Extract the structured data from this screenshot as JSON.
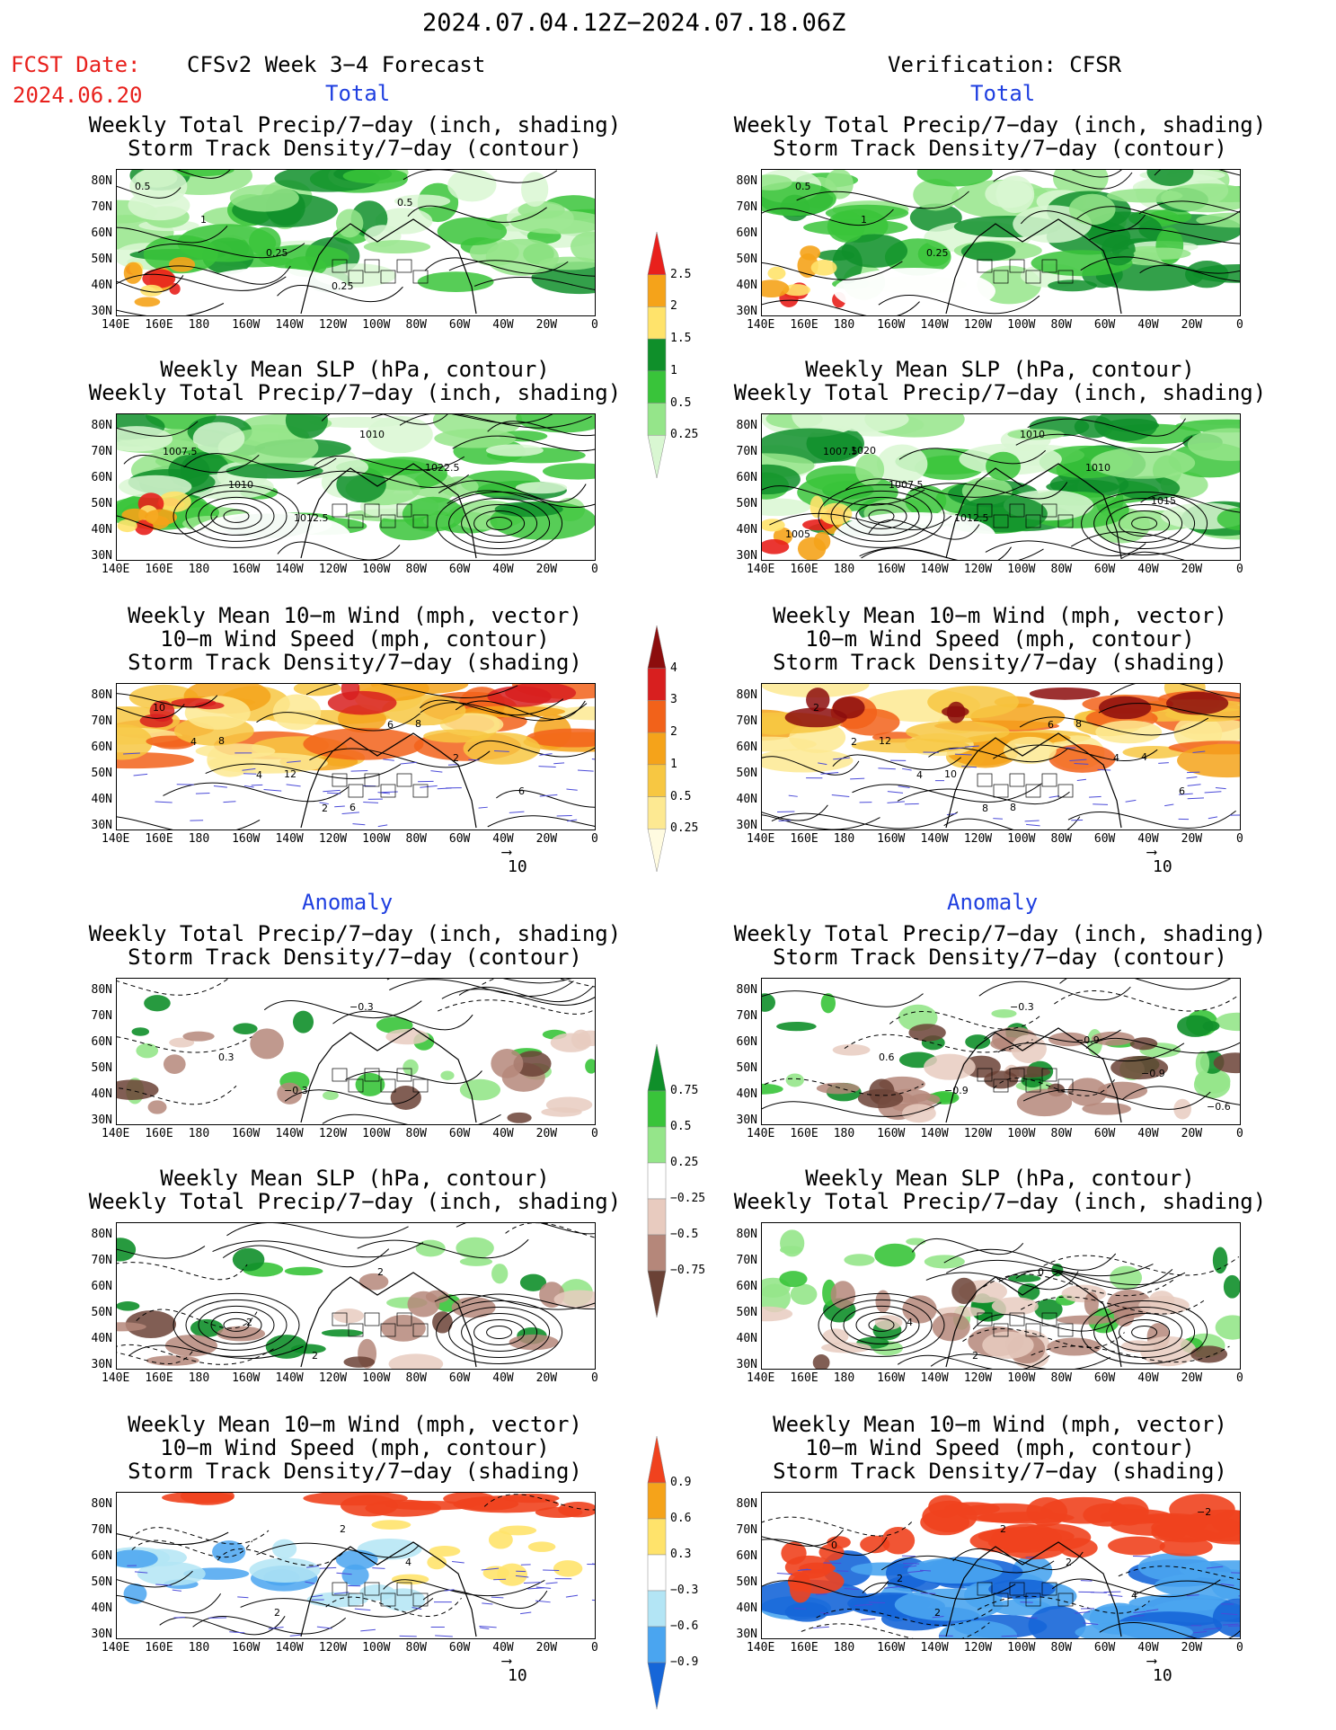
{
  "header": {
    "date_range": "2024.07.04.12Z−2024.07.18.06Z",
    "fcst_label": "FCST Date:",
    "fcst_date": "2024.06.20",
    "forecast_title": "CFSv2 Week 3−4 Forecast",
    "verification_title": "Verification: CFSR"
  },
  "sections": {
    "total": "Total",
    "anomaly": "Anomaly"
  },
  "panel_titles": {
    "precip_storm": [
      "Weekly Total Precip/7−day (inch, shading)",
      "Storm Track Density/7−day (contour)"
    ],
    "slp_precip": [
      "Weekly Mean SLP (hPa, contour)",
      "Weekly Total Precip/7−day (inch, shading)"
    ],
    "wind_storm": [
      "Weekly Mean 10−m Wind (mph, vector)",
      "10−m Wind Speed (mph, contour)",
      "Storm Track Density/7−day (shading)"
    ]
  },
  "axes": {
    "lat_labels": [
      "80N",
      "70N",
      "60N",
      "50N",
      "40N",
      "30N"
    ],
    "lon_labels": [
      "140E",
      "160E",
      "180",
      "160W",
      "140W",
      "120W",
      "100W",
      "80W",
      "60W",
      "40W",
      "20W",
      "0"
    ]
  },
  "vector_ref": "10",
  "colorbars": {
    "total_precip": {
      "labels": [
        "2.5",
        "2",
        "1.5",
        "1",
        "0.5",
        "0.25"
      ],
      "colors": [
        "#e8201c",
        "#f5a31a",
        "#ffe36b",
        "#0f8f2a",
        "#39c43a",
        "#95e58a",
        "#d9f7d2"
      ]
    },
    "total_storm": {
      "labels": [
        "4",
        "3",
        "2",
        "1",
        "0.5",
        "0.25"
      ],
      "colors": [
        "#8c0d0d",
        "#d81f1f",
        "#f2621a",
        "#f5a31a",
        "#f7c742",
        "#fde992",
        "#fffbe0"
      ]
    },
    "anom_precip": {
      "labels": [
        "0.75",
        "0.5",
        "0.25",
        "−0.25",
        "−0.5",
        "−0.75"
      ],
      "colors": [
        "#0f8f2a",
        "#39c43a",
        "#95e58a",
        "#ffffff",
        "#e8cbbf",
        "#b5877a",
        "#6b4236"
      ]
    },
    "anom_storm": {
      "labels": [
        "0.9",
        "0.6",
        "0.3",
        "−0.3",
        "−0.6",
        "−0.9"
      ],
      "colors": [
        "#f0421e",
        "#f5a31a",
        "#ffe36b",
        "#ffffff",
        "#b3e5f5",
        "#4aa5f0",
        "#1666d8"
      ]
    }
  },
  "contour_labels": {
    "left": [
      [
        "0.5",
        "1",
        "0.25",
        "0.25",
        "0.5"
      ],
      [
        "1007.5",
        "1010",
        "1012.5",
        "1010",
        "1022.5"
      ],
      [
        "4",
        "4",
        "2",
        "6",
        "2",
        "6",
        "10",
        "8",
        "12",
        "6",
        "8"
      ],
      [
        "0.3",
        "−0.3",
        "−0.3"
      ],
      [
        "2",
        "2",
        "2"
      ],
      [
        "2",
        "2",
        "4"
      ]
    ],
    "right": [
      [
        "0.5",
        "1",
        "0.25"
      ],
      [
        "1007.5",
        "1007.5",
        "1012.5",
        "1010",
        "1010",
        "1015",
        "1005",
        "1020"
      ],
      [
        "2",
        "4",
        "8",
        "6",
        "4",
        "6",
        "2",
        "12",
        "10",
        "8",
        "8",
        "4"
      ],
      [
        "0.6",
        "−0.9",
        "−0.3",
        "−0.9",
        "−0.9",
        "−0.6"
      ],
      [
        "4",
        "2",
        "0"
      ],
      [
        "2",
        "2",
        "2",
        "4",
        "−2",
        "0",
        "2"
      ]
    ]
  }
}
